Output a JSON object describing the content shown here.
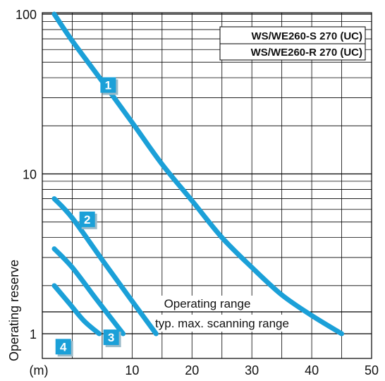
{
  "chart_data": {
    "type": "line",
    "y_scale": "log",
    "ylabel": "Operating reserve",
    "xlabel": "",
    "x_unit_label": "(m)",
    "xlim": [
      -5,
      50
    ],
    "ylim": [
      1,
      100
    ],
    "x_ticks": [
      "10",
      "20",
      "30",
      "40",
      "50"
    ],
    "y_ticks": [
      "1",
      "10",
      "100"
    ],
    "grid": true,
    "legend": [
      "WS/WE260-S 270 (UC)",
      "WS/WE260-R 270 (UC)"
    ],
    "annotations": [
      "Operating range",
      "typ. max. scanning range"
    ],
    "series": [
      {
        "badge": "1",
        "x": [
          -3,
          0,
          5,
          10,
          15,
          20,
          25,
          30,
          35,
          40,
          45
        ],
        "y": [
          100,
          68,
          38,
          21,
          11.5,
          6.8,
          4.0,
          2.6,
          1.75,
          1.3,
          1.0
        ]
      },
      {
        "badge": "2",
        "x": [
          -3,
          0,
          5,
          10,
          14
        ],
        "y": [
          7.0,
          5.3,
          2.9,
          1.6,
          1.0
        ]
      },
      {
        "badge": "3",
        "x": [
          -3,
          0,
          4,
          8.5
        ],
        "y": [
          3.4,
          2.6,
          1.65,
          1.0
        ]
      },
      {
        "badge": "4",
        "x": [
          -3,
          -0.5,
          2,
          4.5
        ],
        "y": [
          2.0,
          1.55,
          1.2,
          1.0
        ]
      }
    ],
    "style": {
      "curve_color": "#1ba0d8",
      "badge_color": "#1ba0d8",
      "grid_color": "#000000"
    }
  }
}
